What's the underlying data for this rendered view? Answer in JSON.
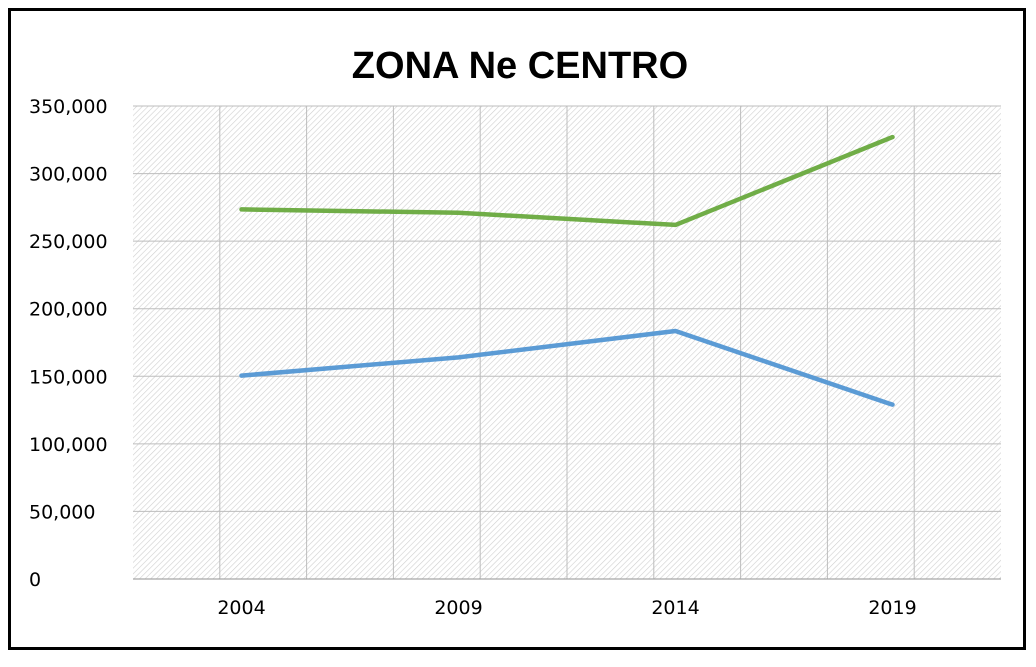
{
  "chart_data": {
    "type": "line",
    "title": "ZONA Ne CENTRO",
    "xlabel": "",
    "ylabel": "",
    "categories": [
      "2004",
      "2009",
      "2014",
      "2019"
    ],
    "ylim": [
      0,
      350000
    ],
    "yticks": [
      0,
      50000,
      100000,
      150000,
      200000,
      250000,
      300000,
      350000
    ],
    "ytick_labels": [
      "0",
      "50,000",
      "100,000",
      "150,000",
      "200,000",
      "250,000",
      "300,000",
      "350,000"
    ],
    "grid": true,
    "legend": "none",
    "series": [
      {
        "name": "series-green",
        "color": "#70ad47",
        "values": [
          273500,
          271000,
          262000,
          327000
        ]
      },
      {
        "name": "series-blue",
        "color": "#5b9bd5",
        "values": [
          150500,
          164000,
          183500,
          129000
        ]
      }
    ]
  }
}
